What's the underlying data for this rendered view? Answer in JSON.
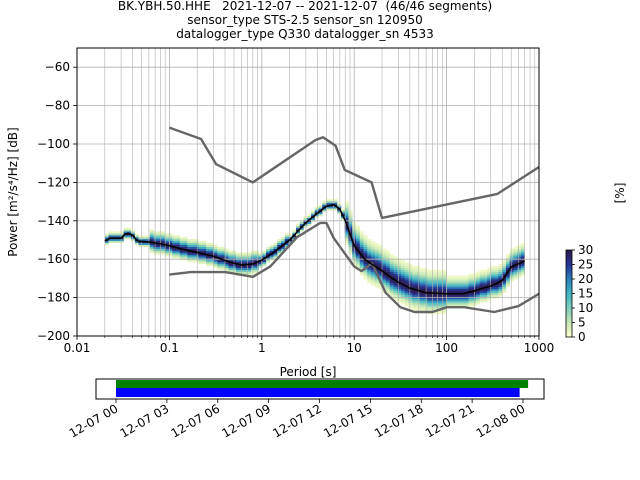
{
  "chart_data": {
    "type": "heatmap",
    "title_lines": [
      "BK.YBH.50.HHE   2021-12-07 -- 2021-12-07  (46/46 segments)",
      "sensor_type STS-2.5 sensor_sn 120950",
      "datalogger_type Q330 datalogger_sn 4533"
    ],
    "xlabel": "Period [s]",
    "ylabel": "Power [m²/s⁴/Hz] [dB]",
    "xscale": "log",
    "xlim": [
      0.01,
      1000
    ],
    "ylim": [
      -200,
      -50
    ],
    "x_ticks": [
      {
        "v": 0.01,
        "label": "0.01"
      },
      {
        "v": 0.1,
        "label": "0.1"
      },
      {
        "v": 1,
        "label": "1"
      },
      {
        "v": 10,
        "label": "10"
      },
      {
        "v": 100,
        "label": "100"
      },
      {
        "v": 1000,
        "label": "1000"
      }
    ],
    "y_ticks": [
      {
        "v": -60,
        "label": "−60"
      },
      {
        "v": -80,
        "label": "−80"
      },
      {
        "v": -100,
        "label": "−100"
      },
      {
        "v": -120,
        "label": "−120"
      },
      {
        "v": -140,
        "label": "−140"
      },
      {
        "v": -160,
        "label": "−160"
      },
      {
        "v": -180,
        "label": "−180"
      },
      {
        "v": -200,
        "label": "−200"
      }
    ],
    "grid": true,
    "colorbar": {
      "label": "[%]",
      "range": [
        0,
        30
      ],
      "ticks": [
        {
          "v": 0,
          "label": "0"
        },
        {
          "v": 5,
          "label": "5"
        },
        {
          "v": 10,
          "label": "10"
        },
        {
          "v": 15,
          "label": "15"
        },
        {
          "v": 20,
          "label": "20"
        },
        {
          "v": 25,
          "label": "25"
        },
        {
          "v": 30,
          "label": "30"
        }
      ],
      "colors": [
        "#ffffcc",
        "#c7e9b4",
        "#7fcdbb",
        "#41b6c4",
        "#2c7fb8",
        "#253494",
        "#2d1b4e"
      ]
    },
    "nhnm": [
      [
        0.1,
        -91.5
      ],
      [
        0.22,
        -97.4
      ],
      [
        0.32,
        -110.5
      ],
      [
        0.8,
        -120
      ],
      [
        3.8,
        -98
      ],
      [
        4.6,
        -96.5
      ],
      [
        6.3,
        -101
      ],
      [
        7.9,
        -113.5
      ],
      [
        15.4,
        -120
      ],
      [
        20,
        -138.5
      ],
      [
        354.8,
        -126
      ],
      [
        1000,
        -112
      ]
    ],
    "nlnm": [
      [
        0.1,
        -168
      ],
      [
        0.17,
        -166.7
      ],
      [
        0.4,
        -166.7
      ],
      [
        0.8,
        -169.2
      ],
      [
        1.24,
        -163.7
      ],
      [
        2.4,
        -148.6
      ],
      [
        4.3,
        -141.1
      ],
      [
        5,
        -141.1
      ],
      [
        6,
        -149
      ],
      [
        10,
        -163.8
      ],
      [
        12,
        -166.2
      ],
      [
        15.6,
        -162.1
      ],
      [
        21.9,
        -177.5
      ],
      [
        31.6,
        -185
      ],
      [
        45,
        -187.5
      ],
      [
        70,
        -187.5
      ],
      [
        101,
        -185
      ],
      [
        154,
        -185
      ],
      [
        328,
        -187.5
      ],
      [
        600,
        -184.4
      ],
      [
        1000,
        -178
      ]
    ],
    "mode": [
      [
        0.02,
        -150.5
      ],
      [
        0.023,
        -149
      ],
      [
        0.03,
        -149
      ],
      [
        0.033,
        -147
      ],
      [
        0.036,
        -146.5
      ],
      [
        0.04,
        -147.5
      ],
      [
        0.045,
        -150.5
      ],
      [
        0.06,
        -151
      ],
      [
        0.08,
        -152
      ],
      [
        0.1,
        -153
      ],
      [
        0.13,
        -154.5
      ],
      [
        0.2,
        -156.5
      ],
      [
        0.3,
        -158.5
      ],
      [
        0.45,
        -161.5
      ],
      [
        0.6,
        -163
      ],
      [
        0.8,
        -162.5
      ],
      [
        1,
        -160.5
      ],
      [
        1.3,
        -157
      ],
      [
        2,
        -150
      ],
      [
        3,
        -141
      ],
      [
        4,
        -136
      ],
      [
        5,
        -132.5
      ],
      [
        6,
        -131.5
      ],
      [
        7,
        -134
      ],
      [
        8,
        -140
      ],
      [
        10,
        -153
      ],
      [
        13,
        -160
      ],
      [
        16,
        -163
      ],
      [
        20,
        -166
      ],
      [
        25,
        -169.5
      ],
      [
        30,
        -172
      ],
      [
        40,
        -175
      ],
      [
        60,
        -177.5
      ],
      [
        100,
        -178
      ],
      [
        150,
        -178
      ],
      [
        200,
        -176.5
      ],
      [
        250,
        -175
      ],
      [
        300,
        -174
      ],
      [
        350,
        -172.5
      ],
      [
        400,
        -171
      ],
      [
        500,
        -164
      ],
      [
        700,
        -161
      ]
    ],
    "segments": {
      "count": 46,
      "start": "2021-12-07",
      "end": "2021-12-07"
    },
    "timeline": {
      "ticks": [
        "12-07 00",
        "12-07 03",
        "12-07 06",
        "12-07 09",
        "12-07 12",
        "12-07 15",
        "12-07 18",
        "12-07 21",
        "12-08 00"
      ],
      "data_coverage": [
        0.0,
        24.3
      ],
      "psd_coverage": [
        0.0,
        23.8
      ],
      "data_color": "#008000",
      "psd_color": "#0000ff"
    }
  }
}
